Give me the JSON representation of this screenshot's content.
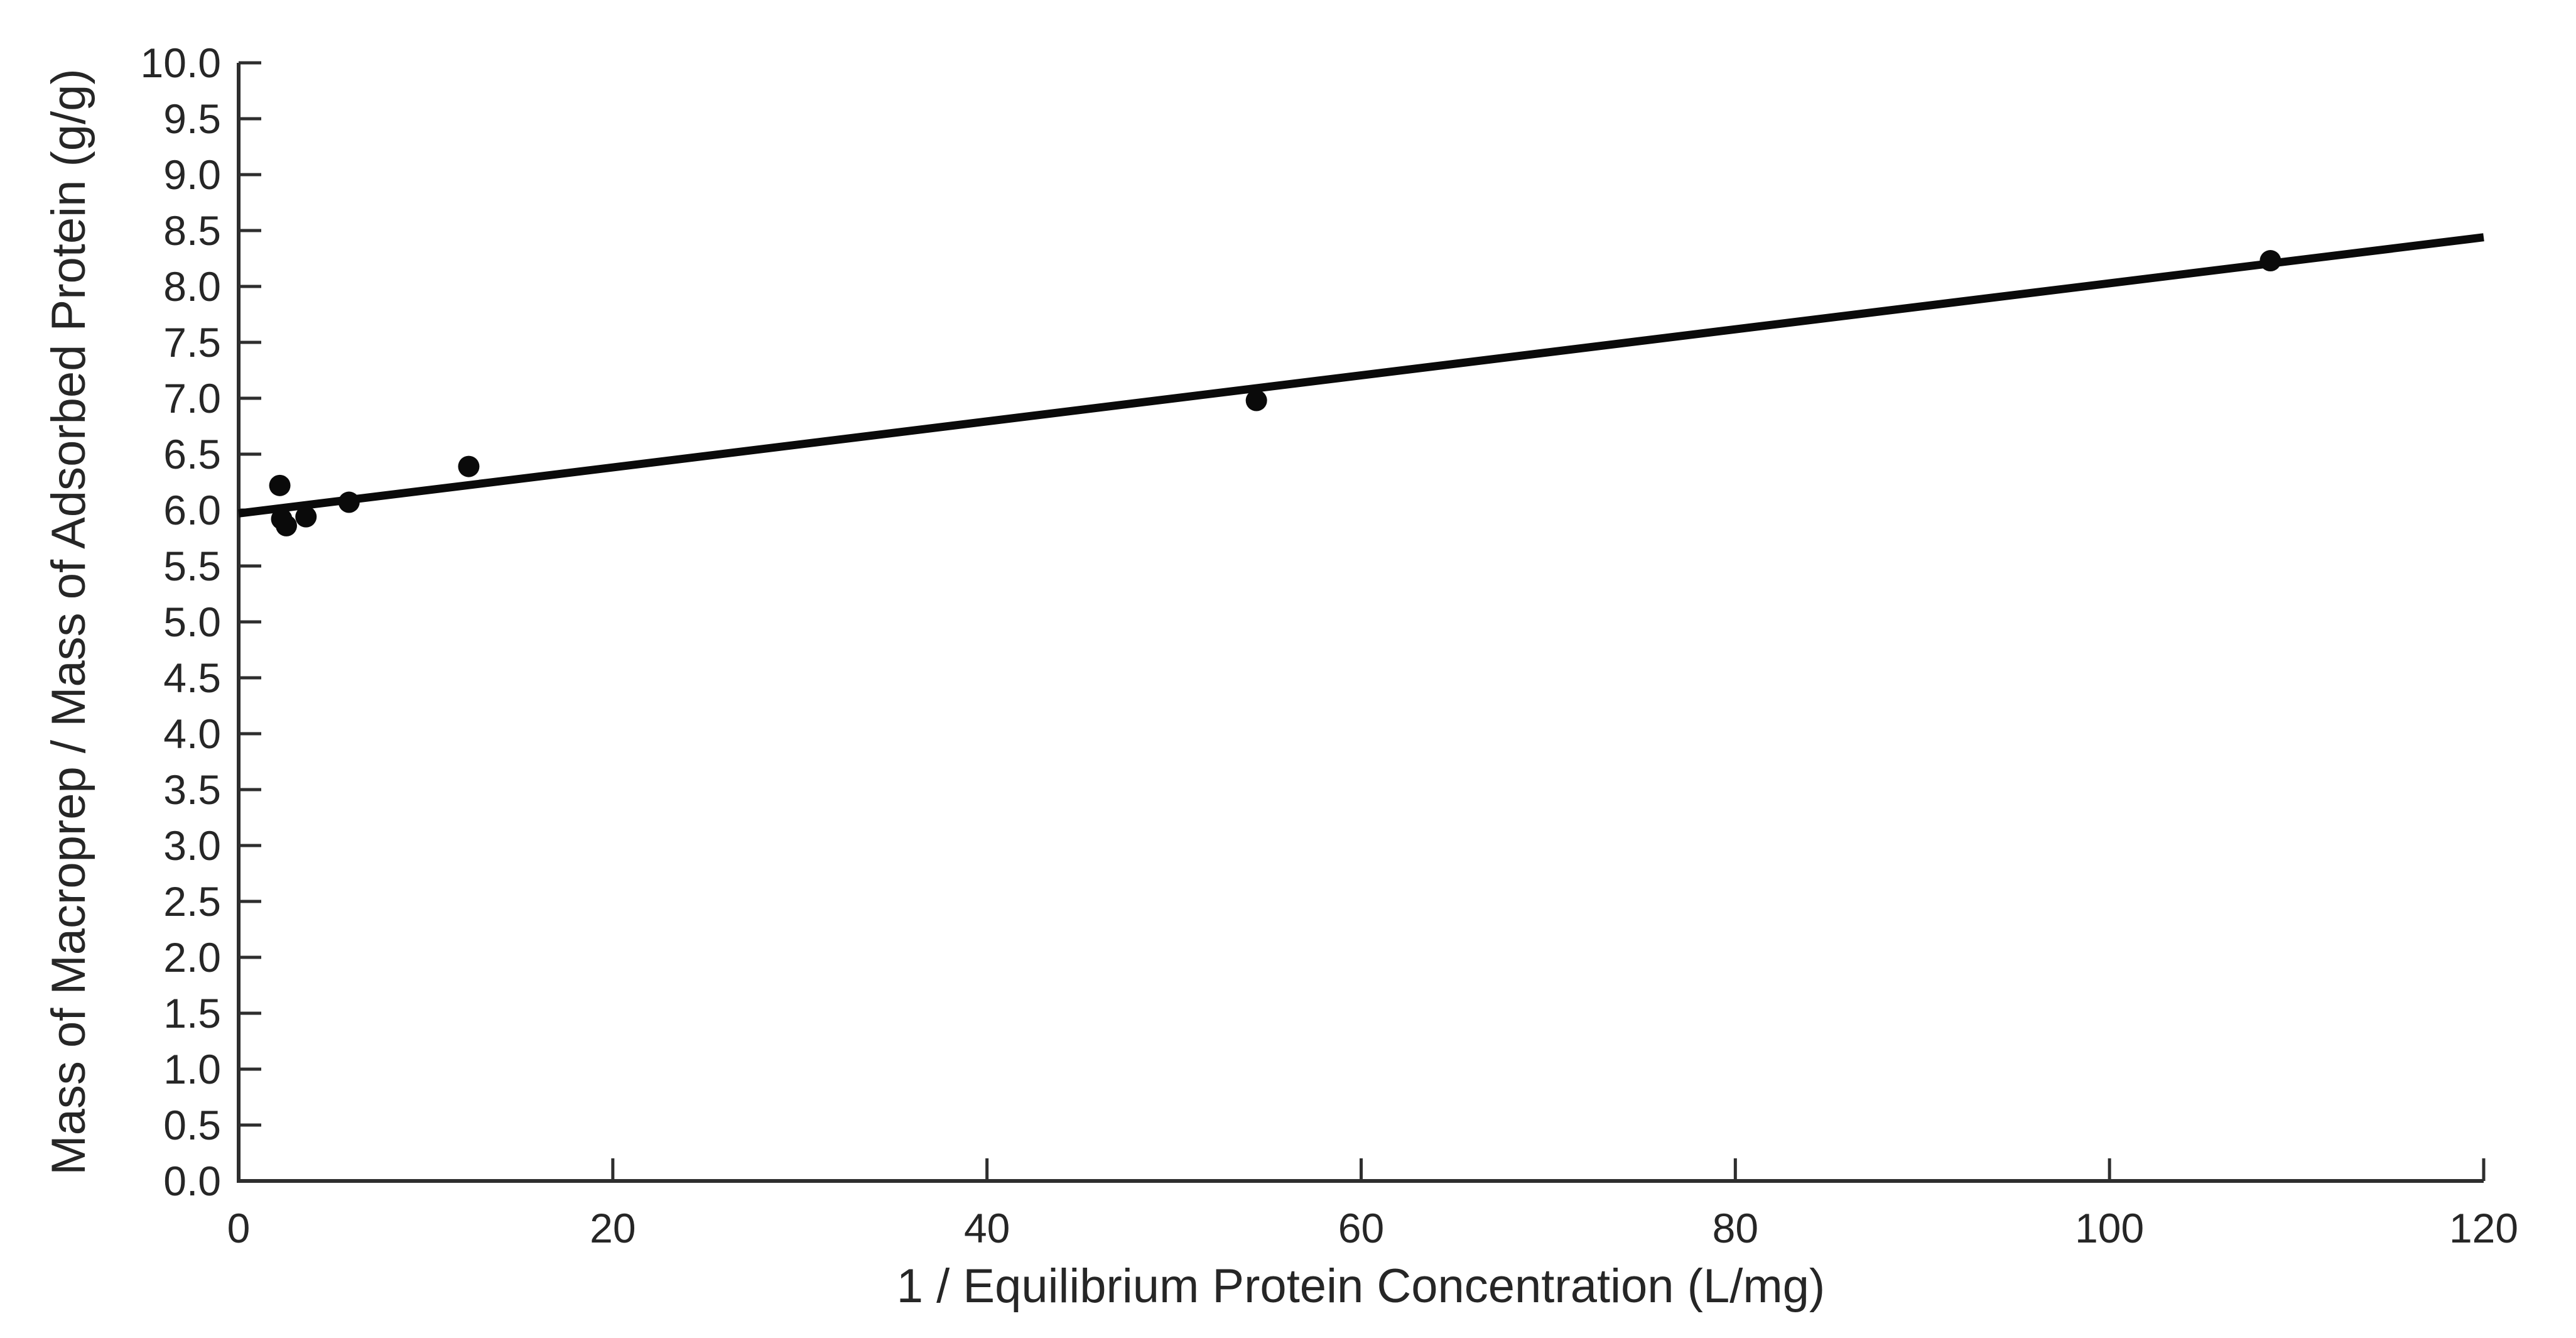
{
  "chart_data": {
    "type": "scatter",
    "title": "",
    "xlabel": "1 / Equilibrium Protein Concentration (L/mg)",
    "ylabel": "Mass of Macroprep / Mass of Adsorbed Protein (g/g)",
    "xlim": [
      0,
      120
    ],
    "ylim": [
      0,
      10
    ],
    "xticks": [
      0,
      20,
      40,
      60,
      80,
      100,
      120
    ],
    "xtick_labels": [
      "0",
      "20",
      "40",
      "60",
      "80",
      "100",
      "120"
    ],
    "yticks": [
      0,
      0.5,
      1,
      1.5,
      2,
      2.5,
      3,
      3.5,
      4,
      4.5,
      5,
      5.5,
      6,
      6.5,
      7,
      7.5,
      8,
      8.5,
      9,
      9.5,
      10
    ],
    "ytick_labels": [
      "0.0",
      "0.5",
      "1.0",
      "1.5",
      "2.0",
      "2.5",
      "3.0",
      "3.5",
      "4.0",
      "4.5",
      "5.0",
      "5.5",
      "6.0",
      "6.5",
      "7.0",
      "7.5",
      "8.0",
      "8.5",
      "9.0",
      "9.5",
      "10.0"
    ],
    "grid": false,
    "legend_position": "none",
    "points": [
      [
        2.2,
        6.22
      ],
      [
        2.3,
        5.92
      ],
      [
        2.55,
        5.86
      ],
      [
        3.6,
        5.94
      ],
      [
        5.9,
        6.07
      ],
      [
        12.3,
        6.39
      ],
      [
        54.4,
        6.98
      ],
      [
        108.6,
        8.23
      ]
    ],
    "fit_line": {
      "slope": 0.0206,
      "intercept": 5.97,
      "x_start": 0,
      "y_start": 5.97,
      "x_end": 120,
      "y_end": 8.44
    },
    "marker_color": "#0a0a0a",
    "line_color": "#0a0a0a",
    "axis_color": "#2e2e2e"
  }
}
